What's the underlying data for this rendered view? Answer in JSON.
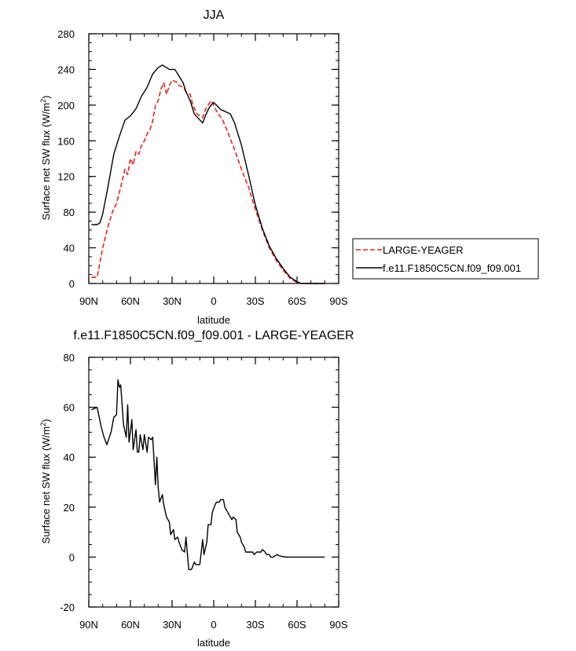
{
  "chart_data": [
    {
      "type": "line",
      "title": "JJA",
      "xlabel": "latitude",
      "ylabel_main": "Surface net SW flux (W/m",
      "ylabel_sup": "2",
      "ylabel_close": ")",
      "xlim": [
        90,
        -90
      ],
      "ylim": [
        0,
        280
      ],
      "xticks": [
        {
          "value": 90,
          "label": "90N"
        },
        {
          "value": 60,
          "label": "60N"
        },
        {
          "value": 30,
          "label": "30N"
        },
        {
          "value": 0,
          "label": "0"
        },
        {
          "value": -30,
          "label": "30S"
        },
        {
          "value": -60,
          "label": "60S"
        },
        {
          "value": -90,
          "label": "90S"
        }
      ],
      "yticks": [
        0,
        40,
        80,
        120,
        160,
        200,
        240,
        280
      ],
      "legend_position": "right",
      "series": [
        {
          "name": "LARGE-YEAGER",
          "color": "#e8231f",
          "dash": "dashed",
          "lat": [
            88,
            84,
            80,
            76,
            73,
            70,
            67,
            64,
            62,
            60,
            58,
            56,
            54,
            52,
            50,
            48,
            46,
            44,
            42,
            40,
            38,
            36,
            34,
            32,
            30,
            27,
            25,
            22,
            20,
            17,
            15,
            12,
            10,
            8,
            6,
            4,
            2,
            0,
            -3,
            -6,
            -10,
            -15,
            -20,
            -25,
            -30,
            -35,
            -40,
            -45,
            -50,
            -55,
            -60,
            -63,
            -66,
            -70,
            -75,
            -80
          ],
          "values": [
            7,
            7,
            40,
            65,
            80,
            90,
            108,
            128,
            122,
            140,
            133,
            148,
            145,
            155,
            160,
            168,
            172,
            182,
            200,
            205,
            218,
            225,
            212,
            222,
            228,
            226,
            222,
            220,
            215,
            212,
            200,
            190,
            188,
            186,
            195,
            200,
            205,
            200,
            190,
            185,
            170,
            150,
            128,
            108,
            83,
            60,
            40,
            26,
            15,
            6,
            1,
            0,
            0,
            0,
            0,
            0
          ]
        },
        {
          "name": "f.e11.F1850C5CN.f09_f09.001",
          "color": "#000000",
          "dash": "solid",
          "lat": [
            88,
            84,
            82,
            80,
            76,
            72,
            68,
            64,
            60,
            56,
            52,
            48,
            44,
            40,
            37,
            34,
            32,
            30,
            28,
            26,
            24,
            22,
            20,
            17,
            14,
            11,
            8,
            6,
            4,
            2,
            0,
            -2,
            -5,
            -8,
            -12,
            -15,
            -20,
            -25,
            -30,
            -35,
            -40,
            -45,
            -50,
            -55,
            -60,
            -63,
            -66,
            -70,
            -75,
            -80
          ],
          "values": [
            66,
            66,
            68,
            78,
            110,
            145,
            165,
            183,
            188,
            196,
            210,
            220,
            235,
            242,
            245,
            242,
            240,
            240,
            240,
            235,
            230,
            225,
            215,
            205,
            190,
            185,
            180,
            188,
            195,
            200,
            203,
            200,
            195,
            193,
            190,
            180,
            155,
            122,
            88,
            62,
            42,
            28,
            17,
            7,
            2,
            0,
            0,
            0,
            0,
            0
          ]
        }
      ]
    },
    {
      "type": "line",
      "title": "f.e11.F1850C5CN.f09_f09.001 - LARGE-YEAGER",
      "xlabel": "latitude",
      "ylabel_main": "Surface net SW flux (W/m",
      "ylabel_sup": "2",
      "ylabel_close": ")",
      "xlim": [
        90,
        -90
      ],
      "ylim": [
        -20,
        80
      ],
      "xticks": [
        {
          "value": 90,
          "label": "90N"
        },
        {
          "value": 60,
          "label": "60N"
        },
        {
          "value": 30,
          "label": "30N"
        },
        {
          "value": 0,
          "label": "0"
        },
        {
          "value": -30,
          "label": "30S"
        },
        {
          "value": -60,
          "label": "60S"
        },
        {
          "value": -90,
          "label": "90S"
        }
      ],
      "yticks": [
        -20,
        0,
        20,
        40,
        60,
        80
      ],
      "series": [
        {
          "color": "#000000",
          "dash": "solid",
          "lat": [
            88,
            84,
            81,
            79,
            77,
            74,
            72,
            70,
            69,
            68,
            67,
            65,
            63,
            62,
            61,
            59,
            58,
            56,
            55,
            54,
            53,
            51,
            50,
            48,
            47,
            45,
            44,
            42,
            41,
            40,
            39,
            37,
            36,
            34,
            32,
            31,
            29,
            28,
            26,
            25,
            23,
            21,
            20,
            18,
            16,
            14,
            13,
            11,
            10,
            8,
            7,
            5,
            4,
            2,
            1,
            -1,
            -2,
            -4,
            -5,
            -7,
            -8,
            -10,
            -11,
            -13,
            -14,
            -16,
            -17,
            -19,
            -20,
            -22,
            -23,
            -25,
            -26,
            -28,
            -29,
            -31,
            -32,
            -34,
            -35,
            -37,
            -38,
            -40,
            -41,
            -43,
            -44,
            -46,
            -47,
            -50,
            -52,
            -55,
            -58,
            -61,
            -64,
            -67,
            -70,
            -74,
            -78,
            -80
          ],
          "values": [
            59,
            60,
            52,
            48,
            45,
            50,
            56,
            57,
            71,
            68,
            69,
            53,
            48,
            61,
            46,
            55,
            43,
            51,
            42,
            42,
            49,
            43,
            49,
            42,
            48,
            47,
            48,
            29,
            40,
            28,
            22,
            25,
            21,
            16,
            14,
            9,
            11,
            7,
            8,
            6,
            3,
            2,
            8,
            -5,
            -5,
            -2,
            -3,
            -3,
            -3,
            7,
            1,
            6,
            13,
            13,
            18,
            21,
            22,
            22,
            23,
            23,
            20,
            18,
            17,
            15,
            16,
            15,
            10,
            8,
            6,
            4,
            2,
            2,
            2,
            2,
            1,
            2,
            2,
            2,
            3,
            2,
            1,
            1,
            0,
            0,
            0.5,
            1,
            0.5,
            0.2,
            0,
            0,
            0,
            0,
            0,
            0,
            0,
            0,
            0,
            0
          ]
        }
      ]
    }
  ]
}
